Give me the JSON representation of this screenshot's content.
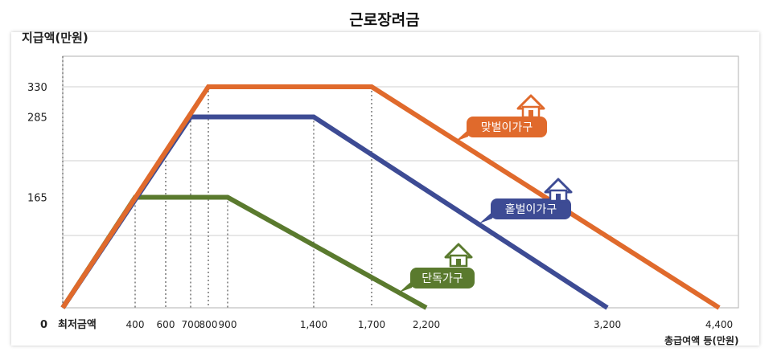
{
  "chart_data": {
    "type": "line",
    "title": "근로장려금",
    "ylabel": "지급액(만원)",
    "xlabel": "총급여액 등(만원)",
    "x_origin_label": "0",
    "x_start_label": "최저금액",
    "x_ticks": [
      {
        "value": 400,
        "label": "400"
      },
      {
        "value": 600,
        "label": "600"
      },
      {
        "value": 700,
        "label": "700"
      },
      {
        "value": 800,
        "label": "800"
      },
      {
        "value": 900,
        "label": "900"
      },
      {
        "value": 1400,
        "label": "1,400"
      },
      {
        "value": 1700,
        "label": "1,700"
      },
      {
        "value": 2200,
        "label": "2,200"
      },
      {
        "value": 3200,
        "label": "3,200"
      },
      {
        "value": 4400,
        "label": "4,400"
      }
    ],
    "y_ticks": [
      {
        "value": 165,
        "label": "165"
      },
      {
        "value": 285,
        "label": "285"
      },
      {
        "value": 330,
        "label": "330"
      }
    ],
    "series": [
      {
        "name": "맞벌이가구",
        "color": "#e06a2c",
        "points": [
          [
            0,
            0
          ],
          [
            800,
            330
          ],
          [
            1700,
            330
          ],
          [
            4400,
            0
          ]
        ]
      },
      {
        "name": "홑벌이가구",
        "color": "#3d4b94",
        "points": [
          [
            0,
            0
          ],
          [
            700,
            285
          ],
          [
            1400,
            285
          ],
          [
            3200,
            0
          ]
        ]
      },
      {
        "name": "단독가구",
        "color": "#5a7a2e",
        "points": [
          [
            0,
            0
          ],
          [
            400,
            165
          ],
          [
            900,
            165
          ],
          [
            2200,
            0
          ]
        ]
      }
    ],
    "grid": true
  }
}
